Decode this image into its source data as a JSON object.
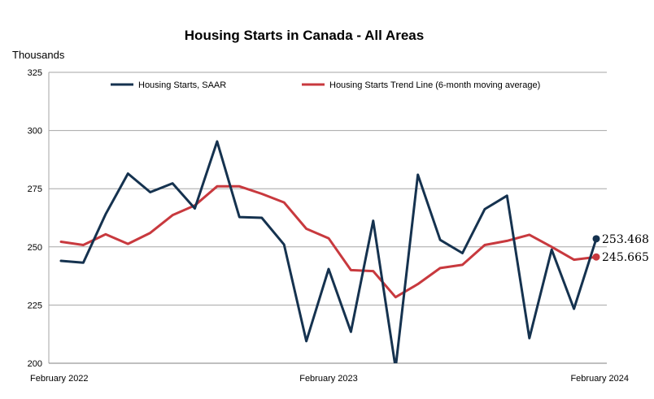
{
  "chart_data": {
    "type": "line",
    "title": "Housing Starts in Canada - All Areas",
    "ylabel": "Thousands",
    "xlabel": "",
    "ylim": [
      200,
      325
    ],
    "yticks": [
      200,
      225,
      250,
      275,
      300,
      325
    ],
    "x_tick_labels": [
      "February 2022",
      "February 2023",
      "February 2024"
    ],
    "x_tick_indices": [
      0,
      12,
      24
    ],
    "grid": true,
    "legend_position": "top",
    "series": [
      {
        "name": "Housing Starts, SAAR",
        "color": "#15324f",
        "values": [
          244.0,
          243.2,
          264.0,
          281.5,
          273.5,
          277.3,
          266.5,
          295.3,
          262.8,
          262.5,
          251.0,
          209.5,
          240.5,
          213.5,
          261.2,
          198.0,
          281.0,
          253.0,
          247.3,
          266.2,
          272.0,
          210.8,
          248.8,
          223.4,
          253.468
        ],
        "end_value_label": "253.468"
      },
      {
        "name": "Housing Starts Trend Line (6-month moving average)",
        "color": "#c8393e",
        "values": [
          252.2,
          250.8,
          255.4,
          251.3,
          256.0,
          263.6,
          267.8,
          276.0,
          276.0,
          272.8,
          269.1,
          257.8,
          253.7,
          240.0,
          239.6,
          228.4,
          234.0,
          240.9,
          242.3,
          250.8,
          252.6,
          255.2,
          250.0,
          244.5,
          245.665
        ],
        "end_value_label": "245.665"
      }
    ]
  }
}
